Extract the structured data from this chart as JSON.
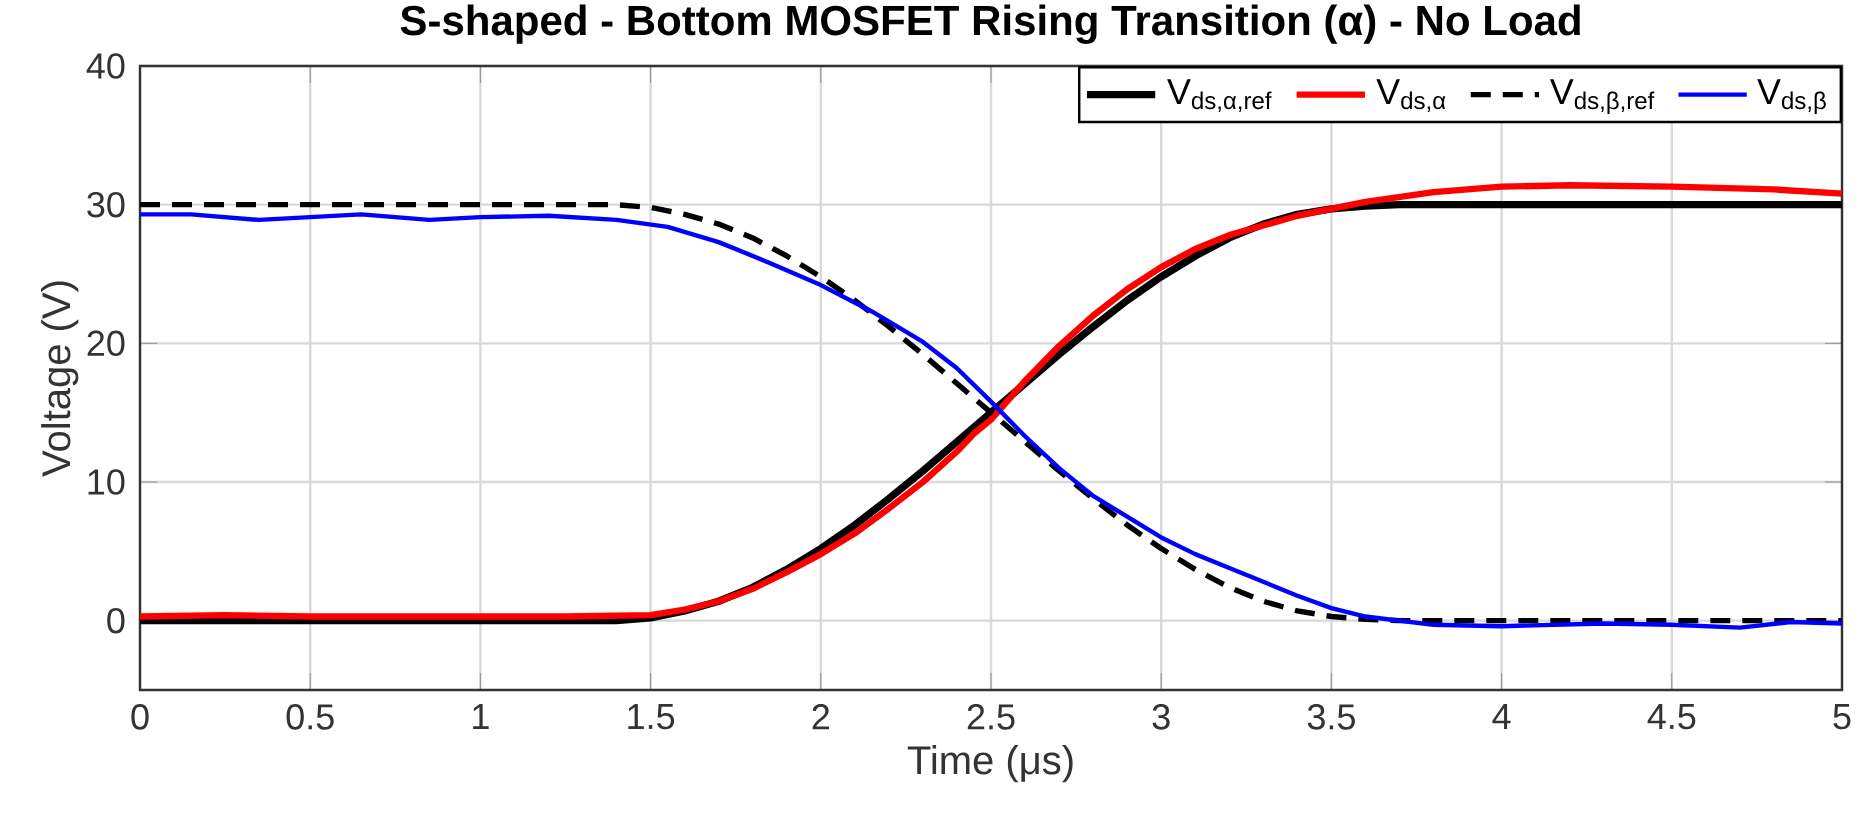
{
  "chart_data": {
    "type": "line",
    "title": "S-shaped - Bottom MOSFET Rising Transition (α) - No Load",
    "xlabel": "Time (μs)",
    "ylabel": "Voltage (V)",
    "xlim": [
      0,
      5
    ],
    "ylim": [
      -5,
      40
    ],
    "xticks": [
      0,
      0.5,
      1,
      1.5,
      2,
      2.5,
      3,
      3.5,
      4,
      4.5,
      5
    ],
    "yticks": [
      0,
      10,
      20,
      30,
      40
    ],
    "grid": true,
    "legend": "top right",
    "marker": "none",
    "series": [
      {
        "name": "V$_{ds,α,ref}$",
        "color": "#000000",
        "line_style": "solid",
        "x": [
          0,
          1.4,
          1.5,
          1.6,
          1.7,
          1.8,
          1.9,
          2.0,
          2.1,
          2.2,
          2.3,
          2.4,
          2.5,
          2.6,
          2.7,
          2.8,
          2.9,
          3.0,
          3.1,
          3.2,
          3.3,
          3.4,
          3.5,
          3.6,
          3.7,
          5
        ],
        "values": [
          0,
          0,
          0.2,
          0.7,
          1.4,
          2.4,
          3.7,
          5.2,
          6.9,
          8.8,
          10.8,
          12.9,
          15,
          17.1,
          19.2,
          21.2,
          23.1,
          24.8,
          26.3,
          27.6,
          28.6,
          29.3,
          29.7,
          29.9,
          30,
          30
        ]
      },
      {
        "name": "V$_{ds,α}$",
        "color": "#ff0000",
        "line_style": "solid",
        "x": [
          0,
          0.25,
          0.5,
          0.75,
          1,
          1.25,
          1.5,
          1.6,
          1.7,
          1.8,
          1.9,
          2.0,
          2.1,
          2.2,
          2.3,
          2.4,
          2.45,
          2.5,
          2.6,
          2.7,
          2.8,
          2.9,
          3.0,
          3.1,
          3.2,
          3.4,
          3.6,
          3.8,
          4.0,
          4.2,
          4.5,
          4.8,
          5
        ],
        "values": [
          0.3,
          0.4,
          0.3,
          0.3,
          0.3,
          0.3,
          0.4,
          0.8,
          1.4,
          2.3,
          3.5,
          4.8,
          6.3,
          8.1,
          10,
          12.2,
          13.5,
          14.5,
          17.3,
          19.8,
          22,
          23.9,
          25.5,
          26.8,
          27.8,
          29.2,
          30.2,
          30.9,
          31.3,
          31.4,
          31.3,
          31.1,
          30.8
        ]
      },
      {
        "name": "V$_{ds,β,ref}$",
        "color": "#000000",
        "line_style": "dashed",
        "x": [
          0,
          1.4,
          1.5,
          1.6,
          1.7,
          1.8,
          1.9,
          2.0,
          2.1,
          2.2,
          2.3,
          2.4,
          2.5,
          2.6,
          2.7,
          2.8,
          2.9,
          3.0,
          3.1,
          3.2,
          3.3,
          3.4,
          3.5,
          3.6,
          3.7,
          5
        ],
        "values": [
          30,
          30,
          29.8,
          29.3,
          28.6,
          27.6,
          26.3,
          24.8,
          23.1,
          21.2,
          19.2,
          17.1,
          15,
          12.9,
          10.8,
          8.8,
          6.9,
          5.2,
          3.7,
          2.4,
          1.4,
          0.7,
          0.3,
          0.1,
          0,
          0
        ]
      },
      {
        "name": "V$_{ds,β}$",
        "color": "#0000ff",
        "line_style": "solid",
        "x": [
          0,
          0.15,
          0.35,
          0.5,
          0.65,
          0.85,
          1.0,
          1.2,
          1.4,
          1.55,
          1.7,
          1.85,
          2.0,
          2.15,
          2.3,
          2.4,
          2.5,
          2.6,
          2.7,
          2.8,
          2.9,
          3.0,
          3.1,
          3.2,
          3.3,
          3.4,
          3.5,
          3.6,
          3.8,
          4.0,
          4.3,
          4.5,
          4.7,
          4.85,
          5
        ],
        "values": [
          29.3,
          29.3,
          28.9,
          29.1,
          29.3,
          28.9,
          29.1,
          29.2,
          28.9,
          28.4,
          27.3,
          25.8,
          24.2,
          22.3,
          20.1,
          18.2,
          15.8,
          13.3,
          11,
          9,
          7.5,
          6,
          4.8,
          3.8,
          2.8,
          1.8,
          0.9,
          0.3,
          -0.3,
          -0.4,
          -0.2,
          -0.3,
          -0.5,
          -0.1,
          -0.2
        ]
      }
    ]
  }
}
